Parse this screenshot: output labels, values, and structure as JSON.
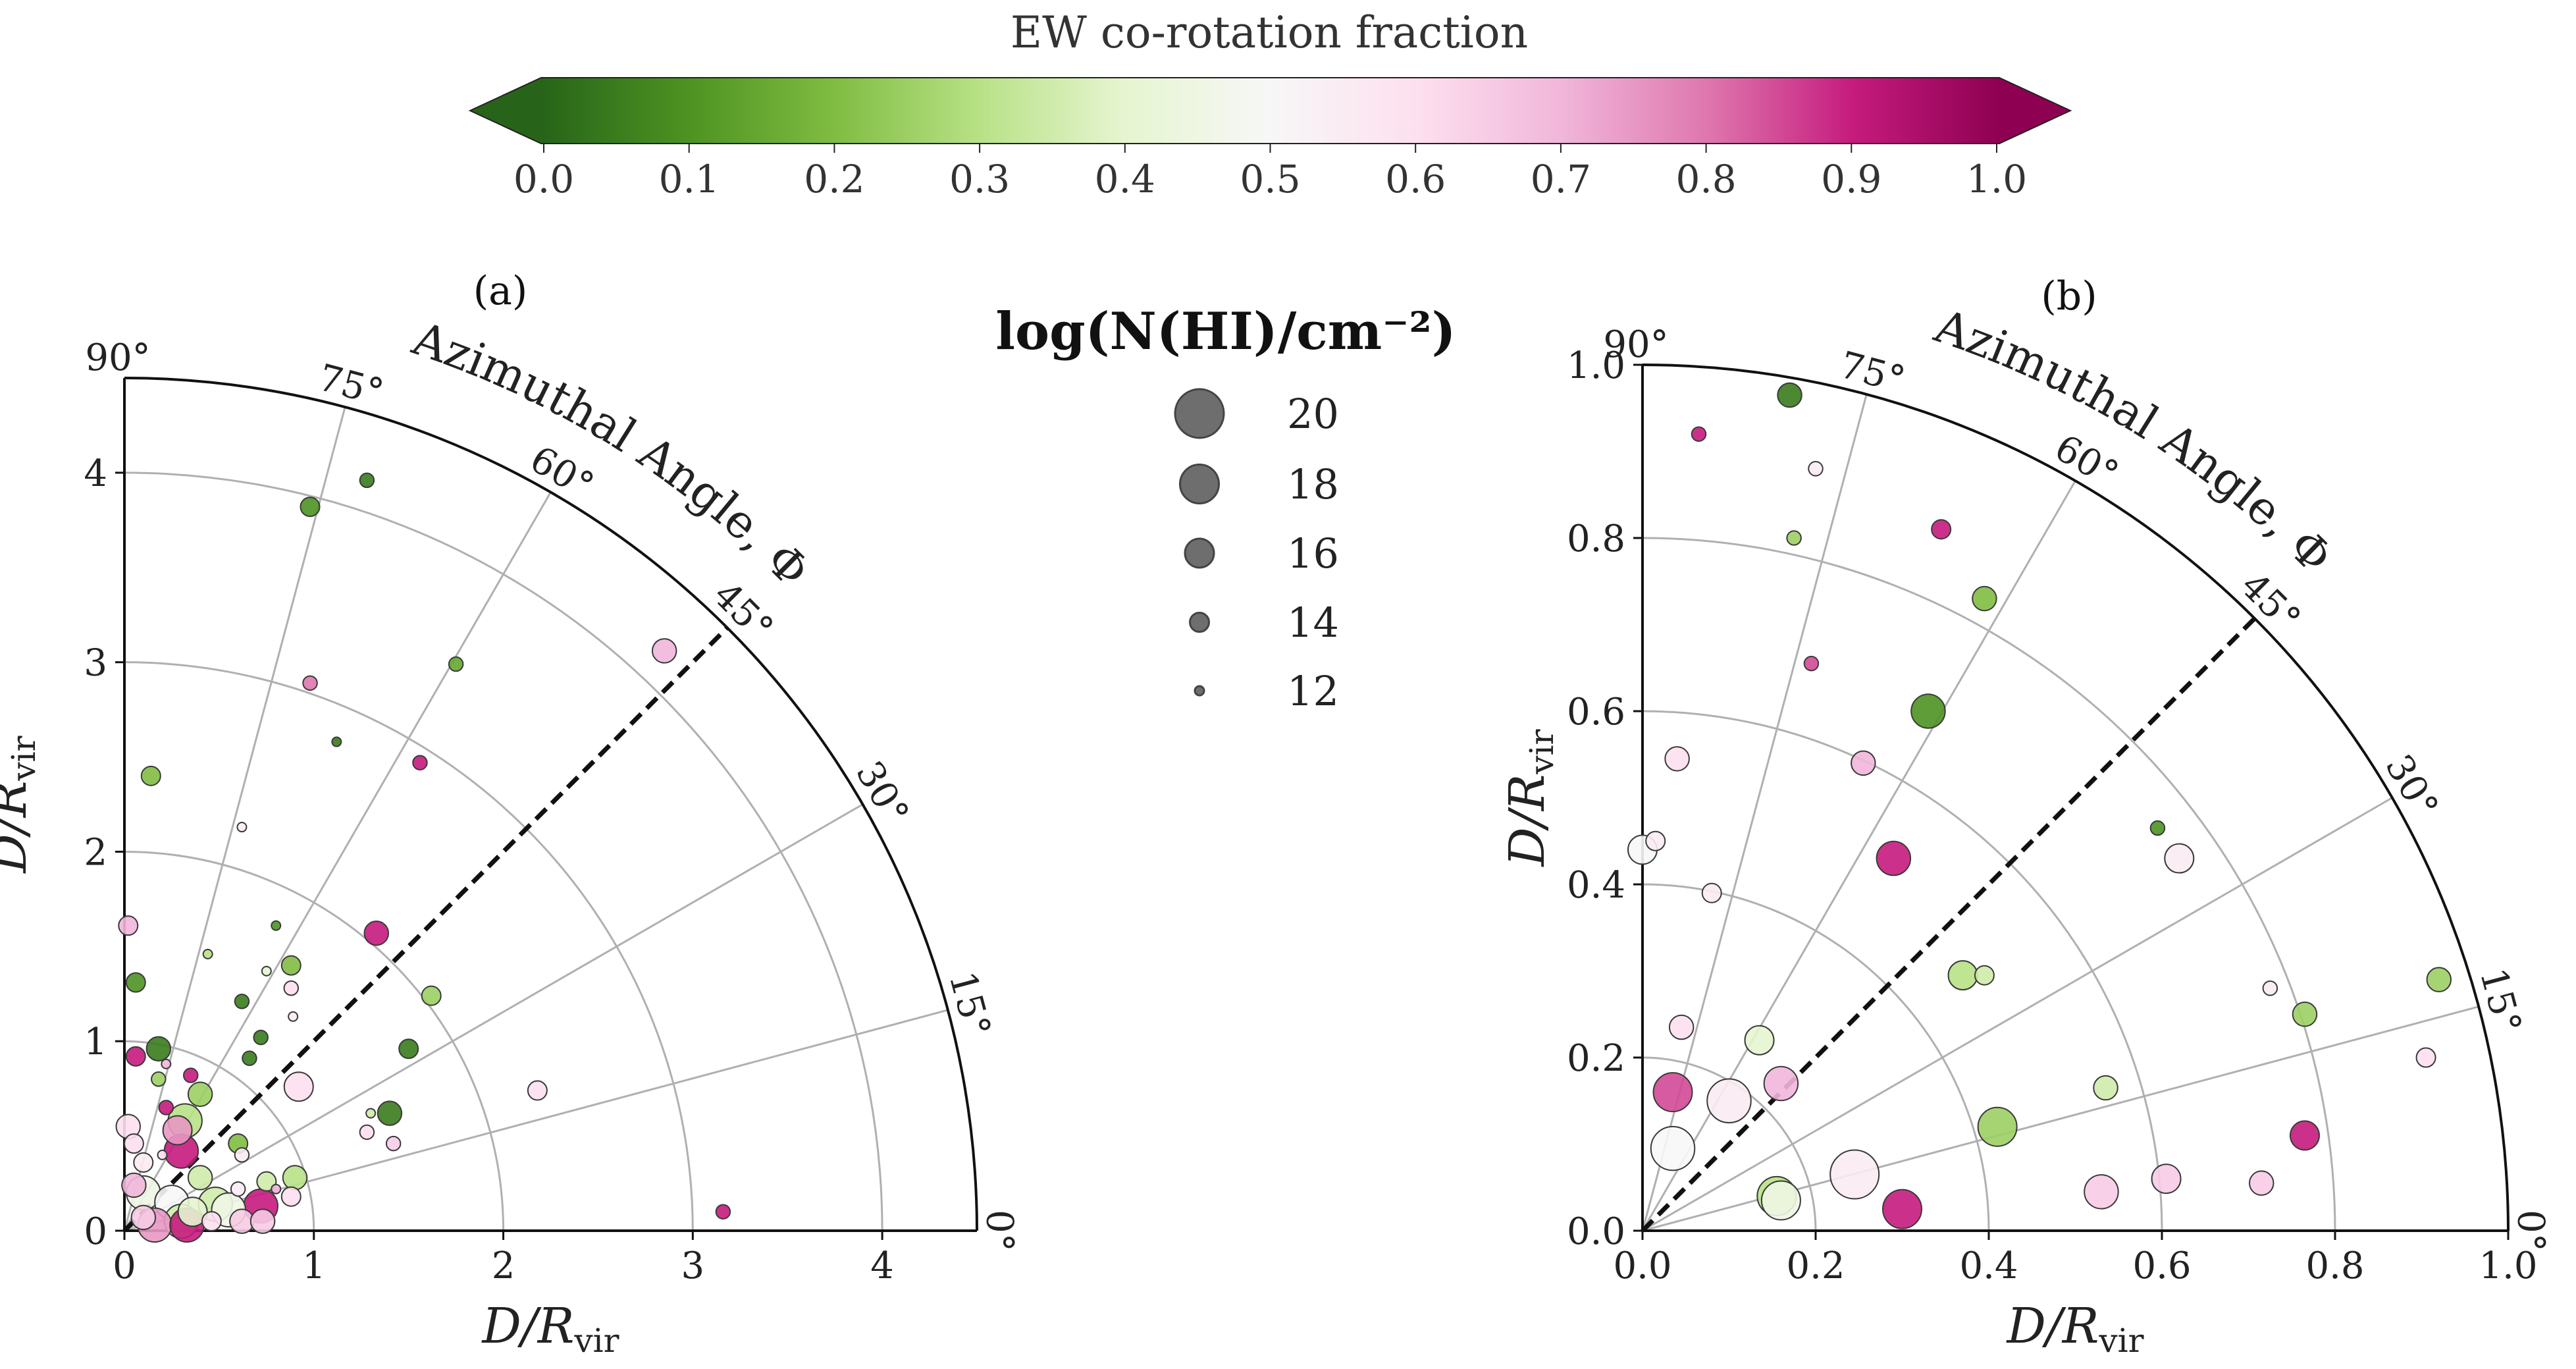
{
  "colorbar": {
    "title": "EW co-rotation fraction",
    "ticks": [
      "0.0",
      "0.1",
      "0.2",
      "0.3",
      "0.4",
      "0.5",
      "0.6",
      "0.7",
      "0.8",
      "0.9",
      "1.0"
    ],
    "stops": [
      "#276419",
      "#4d9221",
      "#7fbc41",
      "#b8e186",
      "#e6f5d0",
      "#f7f7f7",
      "#fde0ef",
      "#f1b6da",
      "#de77ae",
      "#c51b7d",
      "#8e0152"
    ]
  },
  "size_legend": {
    "title": "log(N(HI)/cm⁻²)",
    "entries": [
      {
        "label": "20",
        "value": 20
      },
      {
        "label": "18",
        "value": 18
      },
      {
        "label": "16",
        "value": 16
      },
      {
        "label": "14",
        "value": 14
      },
      {
        "label": "12",
        "value": 12
      }
    ]
  },
  "panel_a": {
    "label": "(a)",
    "xlabel": "D/R",
    "xlabel_sub": "vir",
    "ylabel": "D/R",
    "ylabel_sub": "vir",
    "rlim": [
      0,
      4.5
    ],
    "xticks": [
      "0",
      "1",
      "2",
      "3",
      "4"
    ],
    "yticks": [
      "0",
      "1",
      "2",
      "3",
      "4"
    ],
    "angle_labels": [
      "0°",
      "15°",
      "30°",
      "45°",
      "60°",
      "75°",
      "90°"
    ],
    "azimuth_label": "Azimuthal Angle, Φ"
  },
  "panel_b": {
    "label": "(b)",
    "xlabel": "D/R",
    "xlabel_sub": "vir",
    "ylabel": "D/R",
    "ylabel_sub": "vir",
    "rlim": [
      0,
      1.0
    ],
    "xticks": [
      "0.0",
      "0.2",
      "0.4",
      "0.6",
      "0.8",
      "1.0"
    ],
    "yticks": [
      "0.0",
      "0.2",
      "0.4",
      "0.6",
      "0.8",
      "1.0"
    ],
    "angle_labels": [
      "0°",
      "15°",
      "30°",
      "45°",
      "60°",
      "75°",
      "90°"
    ],
    "azimuth_label": "Azimuthal Angle, Φ"
  },
  "chart_data": [
    {
      "type": "scatter",
      "panel": "a",
      "x_label": "D/R_vir",
      "y_label": "D/R_vir",
      "xlim": [
        0,
        4.5
      ],
      "ylim": [
        0,
        4.5
      ],
      "points": [
        {
          "x": 0.98,
          "y": 3.82,
          "c": 0.1,
          "s": 14
        },
        {
          "x": 1.28,
          "y": 3.96,
          "c": 0.05,
          "s": 13
        },
        {
          "x": 1.75,
          "y": 2.99,
          "c": 0.15,
          "s": 13
        },
        {
          "x": 0.98,
          "y": 2.89,
          "c": 0.8,
          "s": 13
        },
        {
          "x": 1.12,
          "y": 2.58,
          "c": 0.05,
          "s": 12
        },
        {
          "x": 1.56,
          "y": 2.47,
          "c": 0.9,
          "s": 13
        },
        {
          "x": 2.85,
          "y": 3.06,
          "c": 0.7,
          "s": 15
        },
        {
          "x": 0.14,
          "y": 2.4,
          "c": 0.2,
          "s": 14
        },
        {
          "x": 0.62,
          "y": 2.13,
          "c": 0.55,
          "s": 12
        },
        {
          "x": 0.02,
          "y": 1.61,
          "c": 0.7,
          "s": 14
        },
        {
          "x": 0.8,
          "y": 1.61,
          "c": 0.1,
          "s": 12
        },
        {
          "x": 1.33,
          "y": 1.57,
          "c": 0.9,
          "s": 15
        },
        {
          "x": 0.44,
          "y": 1.46,
          "c": 0.3,
          "s": 12
        },
        {
          "x": 0.88,
          "y": 1.4,
          "c": 0.2,
          "s": 14
        },
        {
          "x": 0.75,
          "y": 1.37,
          "c": 0.4,
          "s": 12
        },
        {
          "x": 0.06,
          "y": 1.31,
          "c": 0.1,
          "s": 14
        },
        {
          "x": 0.88,
          "y": 1.28,
          "c": 0.6,
          "s": 13
        },
        {
          "x": 1.62,
          "y": 1.24,
          "c": 0.25,
          "s": 14
        },
        {
          "x": 0.62,
          "y": 1.21,
          "c": 0.05,
          "s": 13
        },
        {
          "x": 0.89,
          "y": 1.13,
          "c": 0.55,
          "s": 12
        },
        {
          "x": 0.72,
          "y": 1.02,
          "c": 0.05,
          "s": 13
        },
        {
          "x": 1.5,
          "y": 0.96,
          "c": 0.05,
          "s": 14
        },
        {
          "x": 0.18,
          "y": 0.96,
          "c": 0.05,
          "s": 15
        },
        {
          "x": 0.06,
          "y": 0.92,
          "c": 0.9,
          "s": 14
        },
        {
          "x": 0.66,
          "y": 0.91,
          "c": 0.05,
          "s": 13
        },
        {
          "x": 0.22,
          "y": 0.88,
          "c": 0.7,
          "s": 12
        },
        {
          "x": 0.35,
          "y": 0.82,
          "c": 0.9,
          "s": 13
        },
        {
          "x": 0.18,
          "y": 0.8,
          "c": 0.25,
          "s": 13
        },
        {
          "x": 0.4,
          "y": 0.72,
          "c": 0.25,
          "s": 15
        },
        {
          "x": 0.92,
          "y": 0.76,
          "c": 0.6,
          "s": 16
        },
        {
          "x": 2.18,
          "y": 0.74,
          "c": 0.6,
          "s": 14
        },
        {
          "x": 0.22,
          "y": 0.65,
          "c": 0.9,
          "s": 13
        },
        {
          "x": 1.4,
          "y": 0.62,
          "c": 0.05,
          "s": 15
        },
        {
          "x": 1.3,
          "y": 0.62,
          "c": 0.35,
          "s": 12
        },
        {
          "x": 0.32,
          "y": 0.58,
          "c": 0.3,
          "s": 17
        },
        {
          "x": 0.02,
          "y": 0.55,
          "c": 0.6,
          "s": 15
        },
        {
          "x": 0.28,
          "y": 0.53,
          "c": 0.75,
          "s": 16
        },
        {
          "x": 1.28,
          "y": 0.52,
          "c": 0.6,
          "s": 13
        },
        {
          "x": 0.05,
          "y": 0.46,
          "c": 0.6,
          "s": 14
        },
        {
          "x": 0.6,
          "y": 0.46,
          "c": 0.2,
          "s": 14
        },
        {
          "x": 1.42,
          "y": 0.46,
          "c": 0.65,
          "s": 13
        },
        {
          "x": 0.3,
          "y": 0.42,
          "c": 0.9,
          "s": 17
        },
        {
          "x": 0.2,
          "y": 0.4,
          "c": 0.6,
          "s": 12
        },
        {
          "x": 0.62,
          "y": 0.4,
          "c": 0.55,
          "s": 13
        },
        {
          "x": 0.1,
          "y": 0.36,
          "c": 0.55,
          "s": 14
        },
        {
          "x": 0.4,
          "y": 0.28,
          "c": 0.35,
          "s": 15
        },
        {
          "x": 0.9,
          "y": 0.28,
          "c": 0.3,
          "s": 15
        },
        {
          "x": 0.75,
          "y": 0.26,
          "c": 0.35,
          "s": 14
        },
        {
          "x": 0.05,
          "y": 0.24,
          "c": 0.7,
          "s": 15
        },
        {
          "x": 0.8,
          "y": 0.22,
          "c": 0.7,
          "s": 12
        },
        {
          "x": 0.6,
          "y": 0.22,
          "c": 0.55,
          "s": 13
        },
        {
          "x": 0.88,
          "y": 0.18,
          "c": 0.6,
          "s": 14
        },
        {
          "x": 0.1,
          "y": 0.2,
          "c": 0.45,
          "s": 17
        },
        {
          "x": 0.25,
          "y": 0.15,
          "c": 0.5,
          "s": 17
        },
        {
          "x": 0.48,
          "y": 0.14,
          "c": 0.35,
          "s": 17
        },
        {
          "x": 0.36,
          "y": 0.1,
          "c": 0.4,
          "s": 16
        },
        {
          "x": 0.72,
          "y": 0.13,
          "c": 0.9,
          "s": 17
        },
        {
          "x": 0.55,
          "y": 0.11,
          "c": 0.45,
          "s": 17
        },
        {
          "x": 0.3,
          "y": 0.05,
          "c": 0.35,
          "s": 17
        },
        {
          "x": 0.1,
          "y": 0.07,
          "c": 0.65,
          "s": 15
        },
        {
          "x": 0.16,
          "y": 0.03,
          "c": 0.75,
          "s": 17
        },
        {
          "x": 0.33,
          "y": 0.03,
          "c": 0.9,
          "s": 17
        },
        {
          "x": 0.46,
          "y": 0.05,
          "c": 0.6,
          "s": 14
        },
        {
          "x": 0.62,
          "y": 0.05,
          "c": 0.65,
          "s": 15
        },
        {
          "x": 0.73,
          "y": 0.05,
          "c": 0.65,
          "s": 15
        },
        {
          "x": 3.16,
          "y": 0.1,
          "c": 0.9,
          "s": 13
        }
      ]
    },
    {
      "type": "scatter",
      "panel": "b",
      "x_label": "D/R_vir",
      "y_label": "D/R_vir",
      "xlim": [
        0.0,
        1.0
      ],
      "ylim": [
        0.0,
        1.0
      ],
      "points": [
        {
          "x": 0.17,
          "y": 0.965,
          "c": 0.05,
          "s": 15
        },
        {
          "x": 0.065,
          "y": 0.92,
          "c": 0.9,
          "s": 13
        },
        {
          "x": 0.2,
          "y": 0.88,
          "c": 0.55,
          "s": 13
        },
        {
          "x": 0.175,
          "y": 0.8,
          "c": 0.25,
          "s": 13
        },
        {
          "x": 0.345,
          "y": 0.81,
          "c": 0.9,
          "s": 14
        },
        {
          "x": 0.395,
          "y": 0.73,
          "c": 0.2,
          "s": 15
        },
        {
          "x": 0.195,
          "y": 0.655,
          "c": 0.85,
          "s": 13
        },
        {
          "x": 0.33,
          "y": 0.6,
          "c": 0.1,
          "s": 17
        },
        {
          "x": 0.04,
          "y": 0.545,
          "c": 0.6,
          "s": 15
        },
        {
          "x": 0.255,
          "y": 0.54,
          "c": 0.7,
          "s": 15
        },
        {
          "x": 0.015,
          "y": 0.45,
          "c": 0.55,
          "s": 14
        },
        {
          "x": 0.0,
          "y": 0.44,
          "c": 0.5,
          "s": 16
        },
        {
          "x": 0.29,
          "y": 0.43,
          "c": 0.9,
          "s": 17
        },
        {
          "x": 0.62,
          "y": 0.43,
          "c": 0.55,
          "s": 16
        },
        {
          "x": 0.595,
          "y": 0.465,
          "c": 0.1,
          "s": 13
        },
        {
          "x": 0.08,
          "y": 0.39,
          "c": 0.55,
          "s": 14
        },
        {
          "x": 0.37,
          "y": 0.295,
          "c": 0.3,
          "s": 16
        },
        {
          "x": 0.395,
          "y": 0.295,
          "c": 0.35,
          "s": 14
        },
        {
          "x": 0.725,
          "y": 0.28,
          "c": 0.55,
          "s": 13
        },
        {
          "x": 0.92,
          "y": 0.29,
          "c": 0.25,
          "s": 15
        },
        {
          "x": 0.765,
          "y": 0.25,
          "c": 0.25,
          "s": 15
        },
        {
          "x": 0.045,
          "y": 0.235,
          "c": 0.6,
          "s": 15
        },
        {
          "x": 0.135,
          "y": 0.22,
          "c": 0.4,
          "s": 16
        },
        {
          "x": 0.905,
          "y": 0.2,
          "c": 0.6,
          "s": 14
        },
        {
          "x": 0.16,
          "y": 0.17,
          "c": 0.7,
          "s": 17
        },
        {
          "x": 0.035,
          "y": 0.16,
          "c": 0.85,
          "s": 18
        },
        {
          "x": 0.1,
          "y": 0.15,
          "c": 0.55,
          "s": 19
        },
        {
          "x": 0.535,
          "y": 0.165,
          "c": 0.35,
          "s": 15
        },
        {
          "x": 0.41,
          "y": 0.12,
          "c": 0.25,
          "s": 18
        },
        {
          "x": 0.765,
          "y": 0.11,
          "c": 0.9,
          "s": 16
        },
        {
          "x": 0.035,
          "y": 0.095,
          "c": 0.5,
          "s": 19
        },
        {
          "x": 0.245,
          "y": 0.065,
          "c": 0.55,
          "s": 20
        },
        {
          "x": 0.605,
          "y": 0.06,
          "c": 0.65,
          "s": 16
        },
        {
          "x": 0.715,
          "y": 0.055,
          "c": 0.65,
          "s": 15
        },
        {
          "x": 0.53,
          "y": 0.045,
          "c": 0.65,
          "s": 17
        },
        {
          "x": 0.155,
          "y": 0.04,
          "c": 0.3,
          "s": 18
        },
        {
          "x": 0.16,
          "y": 0.035,
          "c": 0.45,
          "s": 18
        },
        {
          "x": 0.3,
          "y": 0.025,
          "c": 0.9,
          "s": 18
        }
      ]
    }
  ]
}
